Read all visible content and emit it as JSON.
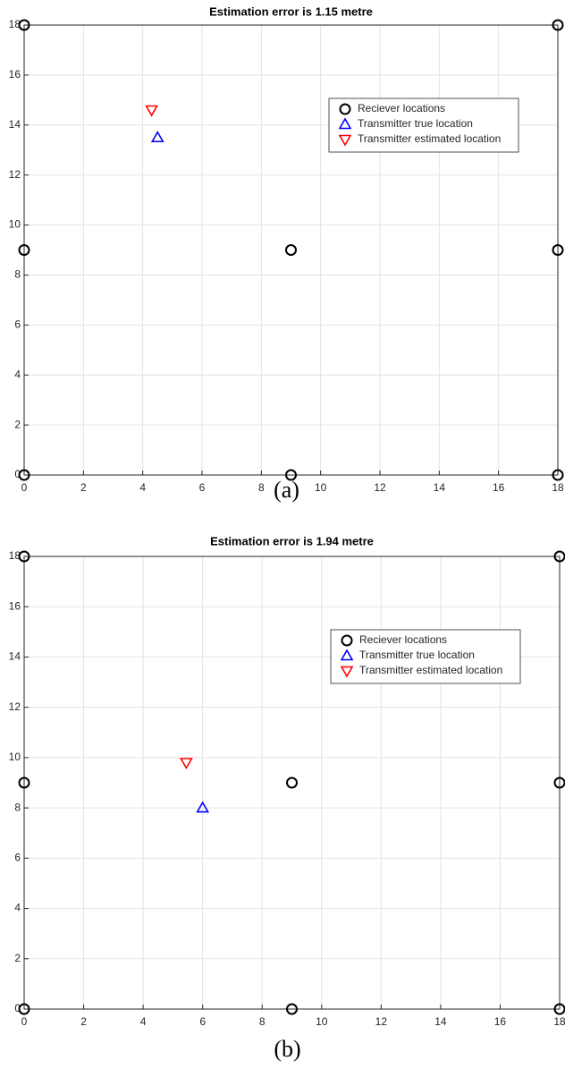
{
  "chart_data": [
    {
      "type": "scatter",
      "title": "Estimation error is 1.15 metre",
      "caption": "(a)",
      "xlim": [
        0,
        18
      ],
      "ylim": [
        0,
        18
      ],
      "xticks": [
        0,
        2,
        4,
        6,
        8,
        10,
        12,
        14,
        16,
        18
      ],
      "yticks": [
        0,
        2,
        4,
        6,
        8,
        10,
        12,
        14,
        16,
        18
      ],
      "grid": true,
      "legend": "northeast",
      "series": [
        {
          "name": "Reciever locations",
          "color": "#000000",
          "marker": "o",
          "x": [
            0,
            0,
            0,
            9,
            9,
            18,
            18,
            18
          ],
          "values": [
            18,
            9,
            0,
            9,
            0,
            18,
            9,
            0
          ]
        },
        {
          "name": "Transmitter true location",
          "color": "#0000ff",
          "marker": "^",
          "x": [
            4.5
          ],
          "values": [
            13.5
          ]
        },
        {
          "name": "Transmitter estimated location",
          "color": "#ff0000",
          "marker": "v",
          "x": [
            4.3
          ],
          "values": [
            14.6
          ]
        }
      ]
    },
    {
      "type": "scatter",
      "title": "Estimation error is 1.94 metre",
      "caption": "(b)",
      "xlim": [
        0,
        18
      ],
      "ylim": [
        0,
        18
      ],
      "xticks": [
        0,
        2,
        4,
        6,
        8,
        10,
        12,
        14,
        16,
        18
      ],
      "yticks": [
        0,
        2,
        4,
        6,
        8,
        10,
        12,
        14,
        16,
        18
      ],
      "grid": true,
      "legend": "northeast",
      "series": [
        {
          "name": "Reciever locations",
          "color": "#000000",
          "marker": "o",
          "x": [
            0,
            0,
            0,
            9,
            9,
            18,
            18,
            18
          ],
          "values": [
            18,
            9,
            0,
            9,
            0,
            18,
            9,
            0
          ]
        },
        {
          "name": "Transmitter true location",
          "color": "#0000ff",
          "marker": "^",
          "x": [
            6
          ],
          "values": [
            8
          ]
        },
        {
          "name": "Transmitter estimated location",
          "color": "#ff0000",
          "marker": "v",
          "x": [
            5.45
          ],
          "values": [
            9.8
          ]
        }
      ]
    }
  ]
}
